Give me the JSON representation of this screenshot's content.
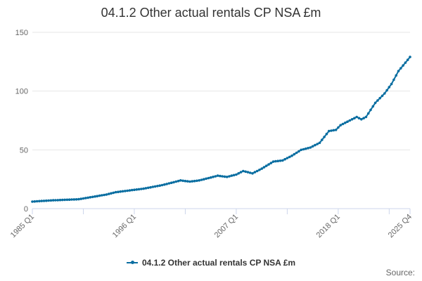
{
  "chart_data": {
    "type": "line",
    "title": "04.1.2 Other actual rentals CP NSA £m",
    "xlabel": "",
    "ylabel": "",
    "x_start": "1985 Q1",
    "x_end": "2025 Q4",
    "frequency": "quarterly",
    "x_tick_labels": [
      "1985 Q1",
      "1996 Q1",
      "2007 Q1",
      "2018 Q1",
      "2025 Q4"
    ],
    "y_ticks": [
      0,
      50,
      100,
      150
    ],
    "ylim": [
      0,
      150
    ],
    "grid": true,
    "legend_position": "bottom",
    "series": [
      {
        "name": "04.1.2 Other actual rentals CP NSA £m",
        "color": "#0a6ea1",
        "anchors": [
          {
            "x": "1985 Q1",
            "y": 6
          },
          {
            "x": "1987 Q1",
            "y": 7
          },
          {
            "x": "1990 Q1",
            "y": 8
          },
          {
            "x": "1993 Q1",
            "y": 12
          },
          {
            "x": "1994 Q1",
            "y": 14
          },
          {
            "x": "1996 Q1",
            "y": 16
          },
          {
            "x": "1997 Q1",
            "y": 17
          },
          {
            "x": "1999 Q1",
            "y": 20
          },
          {
            "x": "2000 Q1",
            "y": 22
          },
          {
            "x": "2001 Q1",
            "y": 24
          },
          {
            "x": "2002 Q1",
            "y": 23
          },
          {
            "x": "2003 Q1",
            "y": 24
          },
          {
            "x": "2004 Q1",
            "y": 26
          },
          {
            "x": "2005 Q1",
            "y": 28
          },
          {
            "x": "2006 Q1",
            "y": 27
          },
          {
            "x": "2007 Q1",
            "y": 29
          },
          {
            "x": "2007 Q4",
            "y": 32
          },
          {
            "x": "2008 Q4",
            "y": 30
          },
          {
            "x": "2009 Q4",
            "y": 34
          },
          {
            "x": "2011 Q1",
            "y": 40
          },
          {
            "x": "2012 Q1",
            "y": 41
          },
          {
            "x": "2013 Q1",
            "y": 45
          },
          {
            "x": "2014 Q1",
            "y": 50
          },
          {
            "x": "2015 Q1",
            "y": 52
          },
          {
            "x": "2016 Q1",
            "y": 56
          },
          {
            "x": "2017 Q1",
            "y": 66
          },
          {
            "x": "2017 Q4",
            "y": 67
          },
          {
            "x": "2018 Q2",
            "y": 71
          },
          {
            "x": "2019 Q1",
            "y": 74
          },
          {
            "x": "2020 Q1",
            "y": 78
          },
          {
            "x": "2020 Q3",
            "y": 76
          },
          {
            "x": "2021 Q1",
            "y": 78
          },
          {
            "x": "2022 Q1",
            "y": 90
          },
          {
            "x": "2023 Q1",
            "y": 98
          },
          {
            "x": "2023 Q4",
            "y": 106
          },
          {
            "x": "2024 Q3",
            "y": 117
          },
          {
            "x": "2025 Q4",
            "y": 129
          }
        ]
      }
    ]
  },
  "source_label": "Source:"
}
